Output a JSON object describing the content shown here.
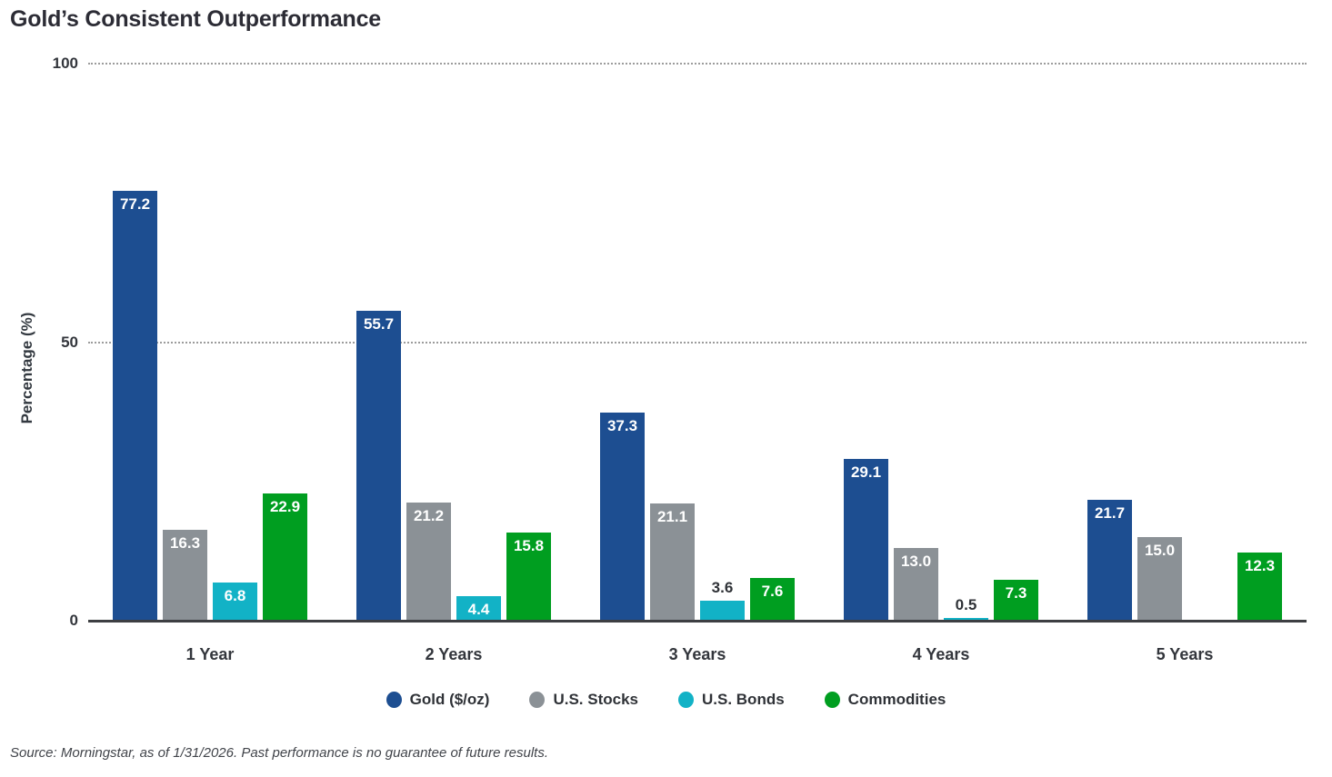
{
  "chart_data": {
    "type": "bar",
    "title": "Gold’s Consistent Outperformance",
    "ylabel": "Percentage (%)",
    "ylim": [
      0,
      100
    ],
    "yticks": [
      0,
      50,
      100
    ],
    "grid": "dotted horizontal gridlines at 50 and 100; solid axis line at 0",
    "legend_position": "bottom center",
    "categories": [
      "1 Year",
      "2 Years",
      "3 Years",
      "4 Years",
      "5 Years"
    ],
    "series": [
      {
        "name": "Gold ($/oz)",
        "color": "#1d4e91",
        "values": [
          77.2,
          55.7,
          37.3,
          29.1,
          21.7
        ]
      },
      {
        "name": "U.S. Stocks",
        "color": "#8b9196",
        "values": [
          16.3,
          21.2,
          21.1,
          13.0,
          15.0
        ]
      },
      {
        "name": "U.S. Bonds",
        "color": "#12b2c6",
        "values": [
          6.8,
          4.4,
          3.6,
          0.5,
          null
        ]
      },
      {
        "name": "Commodities",
        "color": "#009e20",
        "values": [
          22.9,
          15.8,
          7.6,
          7.3,
          12.3
        ]
      }
    ],
    "source": "Source: Morningstar, as of 1/31/2026. Past performance is no guarantee of future results."
  }
}
